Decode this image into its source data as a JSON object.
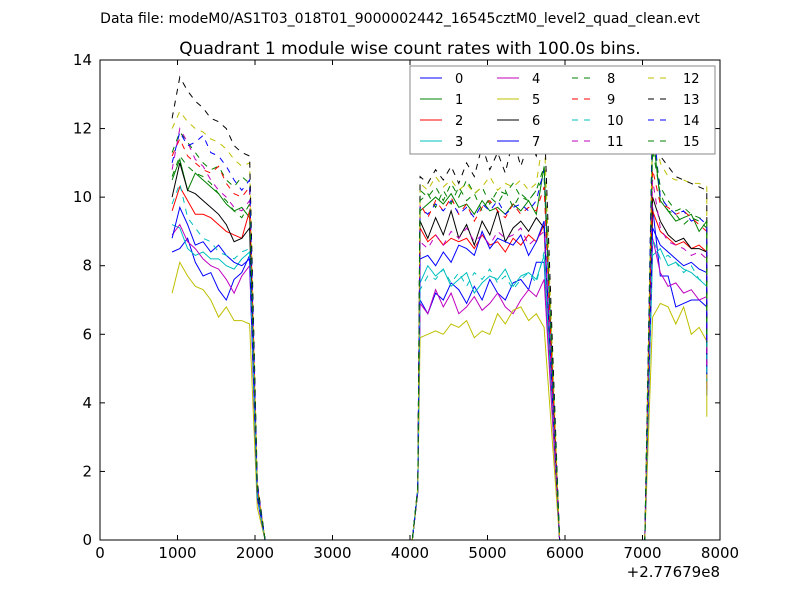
{
  "suptitle": "Data file: modeM0/AS1T03_018T01_9000002442_16545cztM0_level2_quad_clean.evt",
  "chart_data": {
    "type": "line",
    "title": "Quadrant 1 module wise count rates with 100.0s bins.",
    "xlabel": "",
    "ylabel": "",
    "xlim": [
      0,
      8000
    ],
    "ylim": [
      0,
      14
    ],
    "x_offset_label": "+2.77679e8",
    "x_ticks": [
      "0",
      "1000",
      "2000",
      "3000",
      "4000",
      "5000",
      "6000",
      "7000",
      "8000"
    ],
    "y_ticks": [
      "0",
      "2",
      "4",
      "6",
      "8",
      "10",
      "12",
      "14"
    ],
    "grid": false,
    "legend_position": "top-right",
    "legend_columns": 4,
    "series": [
      {
        "name": "0",
        "color": "#0000ff",
        "dash": "solid",
        "s1": [
          8.4,
          8.5,
          8.8,
          8.1,
          7.7,
          7.8,
          7.3,
          7.0,
          7.6,
          7.8,
          8.3
        ],
        "s2": [
          7.0,
          6.6,
          7.2,
          7.0,
          7.5,
          7.3,
          6.9,
          7.4,
          7.0,
          7.6,
          7.2,
          7.0,
          7.5,
          7.6,
          7.3,
          8.1,
          8.1
        ],
        "s3": [
          9.7,
          7.7,
          7.7,
          6.8,
          6.9,
          7.0,
          7.0,
          6.8
        ]
      },
      {
        "name": "1",
        "color": "#008000",
        "dash": "solid",
        "s1": [
          10.5,
          11.1,
          10.2,
          10.7,
          10.5,
          10.3,
          10.1,
          9.8,
          9.6,
          9.7,
          9.4
        ],
        "s2": [
          9.6,
          9.8,
          10.0,
          9.8,
          10.1,
          9.7,
          9.8,
          9.5,
          9.9,
          9.6,
          9.7,
          9.5,
          9.8,
          9.6,
          9.9,
          9.5,
          10.9
        ],
        "s3": [
          11.9,
          9.9,
          9.6,
          9.3,
          9.4,
          9.5,
          9.0,
          9.3
        ]
      },
      {
        "name": "2",
        "color": "#ff0000",
        "dash": "solid",
        "s1": [
          9.6,
          10.3,
          9.9,
          9.5,
          9.5,
          9.4,
          9.2,
          9.0,
          8.9,
          8.8,
          9.6
        ],
        "s2": [
          9.1,
          8.7,
          8.9,
          8.6,
          8.8,
          8.7,
          8.8,
          8.5,
          8.9,
          8.6,
          8.7,
          8.4,
          8.8,
          8.6,
          8.9,
          8.7,
          9.2
        ],
        "s3": [
          9.6,
          9.0,
          8.8,
          8.6,
          8.7,
          8.5,
          8.6,
          8.4
        ]
      },
      {
        "name": "3",
        "color": "#00bfbf",
        "dash": "solid",
        "s1": [
          9.2,
          9.1,
          8.5,
          8.3,
          8.4,
          8.2,
          8.2,
          8.0,
          7.9,
          8.2,
          8.4
        ],
        "s2": [
          7.5,
          8.0,
          7.7,
          7.9,
          7.4,
          7.6,
          7.8,
          7.2,
          7.5,
          7.7,
          7.6,
          7.9,
          7.4,
          7.7,
          7.8,
          7.6,
          8.3
        ],
        "s3": [
          8.3,
          8.5,
          8.0,
          8.1,
          7.9,
          7.8,
          7.6,
          7.4
        ]
      },
      {
        "name": "4",
        "color": "#bf00bf",
        "dash": "solid",
        "s1": [
          8.9,
          9.2,
          8.7,
          8.5,
          8.2,
          8.0,
          7.9,
          7.6,
          7.2,
          7.7,
          8.0
        ],
        "s2": [
          6.9,
          6.6,
          7.3,
          6.8,
          7.2,
          6.6,
          6.8,
          7.1,
          6.7,
          6.9,
          7.2,
          6.8,
          6.6,
          7.0,
          7.3,
          7.1,
          7.6
        ],
        "s3": [
          8.8,
          7.8,
          7.4,
          7.5,
          7.2,
          7.3,
          7.0,
          7.1
        ]
      },
      {
        "name": "5",
        "color": "#bfbf00",
        "dash": "solid",
        "s1": [
          7.2,
          8.1,
          7.7,
          7.4,
          7.3,
          7.0,
          6.5,
          6.8,
          6.4,
          6.4,
          6.3
        ],
        "s2": [
          5.9,
          6.0,
          6.1,
          6.0,
          6.3,
          6.2,
          6.4,
          5.9,
          6.1,
          6.0,
          6.6,
          6.3,
          6.7,
          6.8,
          6.4,
          6.6,
          6.2
        ],
        "s3": [
          6.5,
          6.9,
          6.8,
          6.3,
          6.8,
          6.0,
          6.2,
          5.8
        ]
      },
      {
        "name": "6",
        "color": "#000000",
        "dash": "solid",
        "s1": [
          10.0,
          11.0,
          10.2,
          10.1,
          9.9,
          9.7,
          9.5,
          9.2,
          8.7,
          8.8,
          9.1
        ],
        "s2": [
          9.3,
          8.8,
          9.4,
          8.9,
          9.6,
          8.8,
          9.2,
          8.6,
          9.3,
          8.9,
          9.6,
          8.7,
          9.1,
          9.3,
          9.0,
          9.4,
          9.1
        ],
        "s3": [
          10.0,
          9.3,
          8.9,
          8.7,
          8.8,
          8.5,
          8.5,
          8.4
        ]
      },
      {
        "name": "7",
        "color": "#0000ff",
        "dash": "solid",
        "s1": [
          8.8,
          9.7,
          9.2,
          8.6,
          8.7,
          8.4,
          8.6,
          8.3,
          8.1,
          8.0,
          8.2
        ],
        "s2": [
          8.2,
          8.3,
          8.0,
          8.4,
          8.1,
          8.6,
          8.5,
          8.3,
          9.0,
          8.5,
          8.8,
          8.7,
          8.6,
          8.9,
          8.3,
          8.7,
          9.3
        ],
        "s3": [
          9.1,
          8.6,
          8.4,
          8.2,
          8.0,
          8.1,
          7.9,
          7.8
        ]
      },
      {
        "name": "8",
        "color": "#008000",
        "dash": "dashed",
        "s1": [
          11.3,
          11.9,
          11.6,
          11.3,
          11.0,
          10.8,
          10.9,
          10.5,
          10.3,
          10.6,
          10.4
        ],
        "s2": [
          10.2,
          10.0,
          10.3,
          9.9,
          10.4,
          10.0,
          10.5,
          10.1,
          10.3,
          9.8,
          10.2,
          10.1,
          10.4,
          10.0,
          9.9,
          10.2,
          10.6
        ],
        "s3": [
          11.4,
          10.1,
          9.6,
          9.5,
          9.2,
          9.4,
          9.3,
          9.1
        ]
      },
      {
        "name": "9",
        "color": "#ff0000",
        "dash": "dashed",
        "s1": [
          11.2,
          11.7,
          11.2,
          11.0,
          10.8,
          10.7,
          10.9,
          10.4,
          10.1,
          10.0,
          10.3
        ],
        "s2": [
          9.8,
          9.4,
          9.9,
          9.6,
          10.0,
          9.5,
          9.8,
          9.3,
          9.7,
          9.9,
          9.6,
          9.4,
          9.8,
          9.5,
          9.7,
          9.6,
          10.3
        ],
        "s3": [
          10.8,
          9.8,
          9.7,
          9.5,
          9.6,
          9.4,
          9.2,
          9.0
        ]
      },
      {
        "name": "10",
        "color": "#00bfbf",
        "dash": "dashed",
        "s1": [
          9.8,
          10.4,
          9.4,
          9.1,
          8.8,
          8.7,
          8.4,
          8.3,
          8.2,
          8.4,
          8.5
        ],
        "s2": [
          7.3,
          7.7,
          7.6,
          7.9,
          7.5,
          7.8,
          7.4,
          7.8,
          7.6,
          7.9,
          7.5,
          7.7,
          7.3,
          7.6,
          7.8,
          7.5,
          8.4
        ],
        "s3": [
          8.8,
          8.2,
          8.3,
          8.1,
          7.8,
          8.0,
          7.6,
          7.5
        ]
      },
      {
        "name": "11",
        "color": "#bf00bf",
        "dash": "dashed",
        "s1": [
          10.8,
          12.0,
          11.6,
          11.1,
          10.9,
          10.5,
          10.2,
          10.0,
          9.7,
          9.6,
          9.9
        ],
        "s2": [
          8.7,
          8.5,
          8.9,
          8.6,
          9.0,
          8.8,
          9.1,
          8.7,
          8.9,
          8.6,
          9.0,
          8.8,
          8.9,
          9.1,
          8.6,
          8.8,
          9.0
        ],
        "s3": [
          10.5,
          9.1,
          8.7,
          8.6,
          8.5,
          8.3,
          8.4,
          8.2
        ]
      },
      {
        "name": "12",
        "color": "#bfbf00",
        "dash": "dashed",
        "s1": [
          12.0,
          12.5,
          12.2,
          12.0,
          11.9,
          11.7,
          11.6,
          11.4,
          11.1,
          10.9,
          11.0
        ],
        "s2": [
          10.4,
          10.2,
          10.6,
          10.3,
          10.5,
          10.2,
          10.4,
          10.1,
          10.3,
          10.6,
          10.2,
          10.4,
          10.3,
          10.5,
          10.2,
          10.4,
          11.9
        ],
        "s3": [
          12.2,
          11.0,
          10.6,
          10.5,
          10.5,
          10.4,
          10.4,
          10.3
        ]
      },
      {
        "name": "13",
        "color": "#000000",
        "dash": "dashed",
        "s1": [
          12.3,
          13.5,
          13.1,
          12.8,
          12.6,
          12.3,
          12.2,
          12.0,
          11.5,
          11.3,
          11.2
        ],
        "s2": [
          10.6,
          10.4,
          10.8,
          10.5,
          10.9,
          10.4,
          11.0,
          10.6,
          11.5,
          10.8,
          11.3,
          10.7,
          11.7,
          10.9,
          11.6,
          11.2,
          12.4
        ],
        "s3": [
          12.5,
          11.2,
          10.9,
          10.6,
          10.5,
          10.4,
          10.3,
          10.2
        ]
      },
      {
        "name": "14",
        "color": "#0000ff",
        "dash": "dashed",
        "s1": [
          11.0,
          11.9,
          11.5,
          11.6,
          11.8,
          11.3,
          11.2,
          10.9,
          10.5,
          10.2,
          10.5
        ],
        "s2": [
          9.7,
          9.5,
          9.8,
          9.6,
          9.9,
          9.5,
          9.7,
          9.4,
          9.8,
          9.6,
          9.9,
          9.5,
          9.7,
          9.8,
          9.6,
          9.9,
          10.8
        ],
        "s3": [
          12.4,
          10.0,
          9.7,
          9.5,
          9.6,
          9.3,
          9.4,
          9.2
        ]
      },
      {
        "name": "15",
        "color": "#008000",
        "dash": "dashed",
        "s1": [
          10.6,
          11.2,
          10.9,
          10.7,
          10.6,
          10.4,
          10.1,
          9.9,
          9.6,
          9.4,
          9.8
        ],
        "s2": [
          9.9,
          10.1,
          9.7,
          10.2,
          9.8,
          10.3,
          9.9,
          10.1,
          9.6,
          10.0,
          9.8,
          10.2,
          9.7,
          10.1,
          9.9,
          10.2,
          10.9
        ],
        "s3": [
          11.7,
          10.3,
          9.9,
          9.6,
          9.7,
          9.5,
          9.4,
          9.3
        ]
      }
    ]
  }
}
